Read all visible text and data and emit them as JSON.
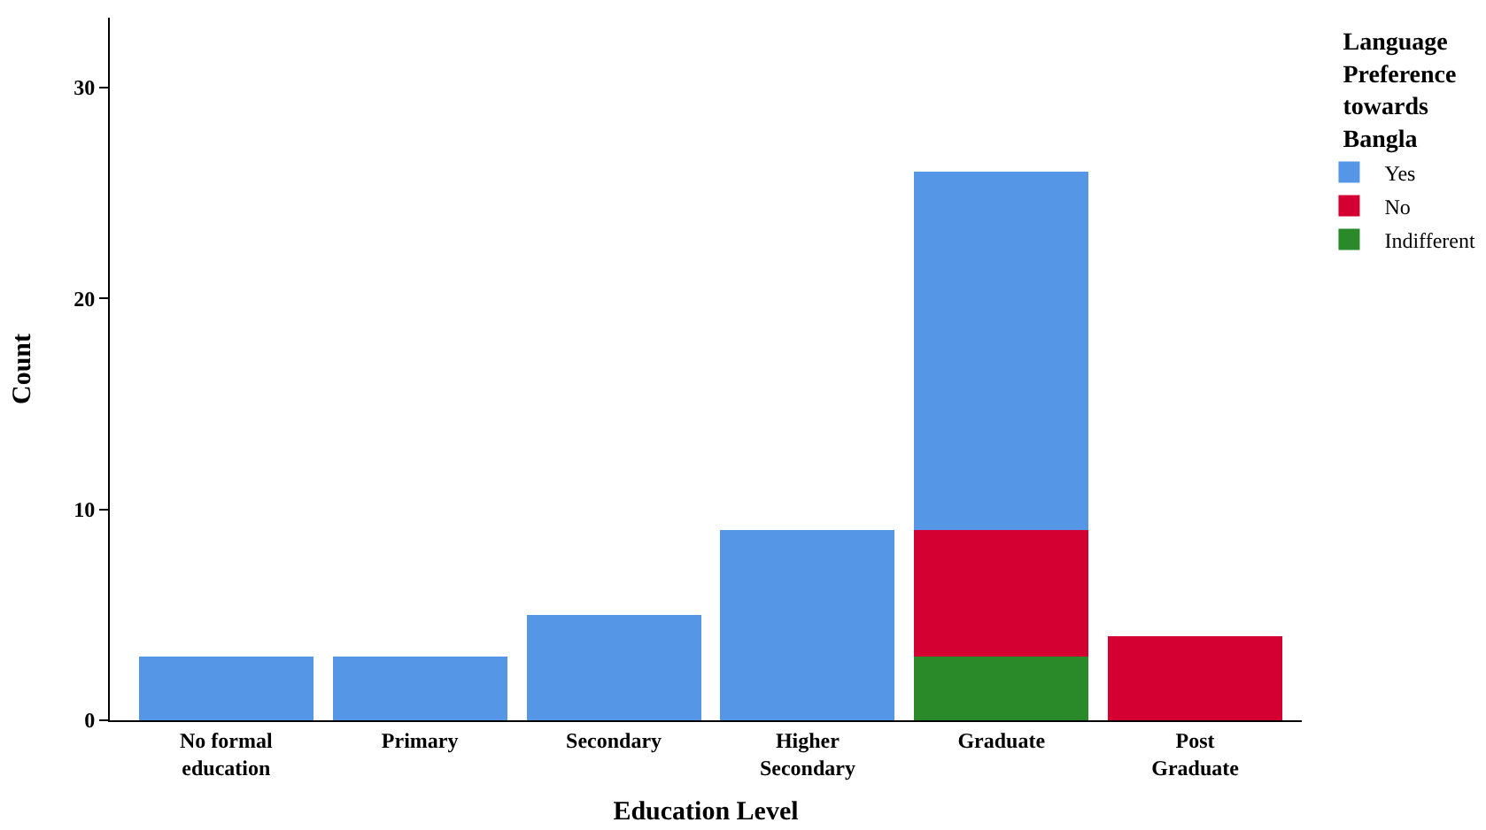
{
  "chart_data": {
    "type": "bar",
    "stacked": true,
    "xlabel": "Education Level",
    "ylabel": "Count",
    "legend_title": "Language Preference towards Bangla",
    "categories": [
      "No formal education",
      "Primary",
      "Secondary",
      "Higher Secondary",
      "Graduate",
      "Post Graduate"
    ],
    "series": [
      {
        "name": "Indifferent",
        "color": "#2a8a2a",
        "values": [
          null,
          null,
          null,
          null,
          3,
          null
        ]
      },
      {
        "name": "No",
        "color": "#d50032",
        "values": [
          null,
          null,
          null,
          null,
          6,
          4
        ]
      },
      {
        "name": "Yes",
        "color": "#5596e6",
        "values": [
          3,
          3,
          5,
          9,
          17,
          null
        ]
      }
    ],
    "ylim": [
      0,
      33.3
    ],
    "yticks": [
      0,
      10,
      20,
      30
    ],
    "grid": false,
    "legend": "top right"
  }
}
